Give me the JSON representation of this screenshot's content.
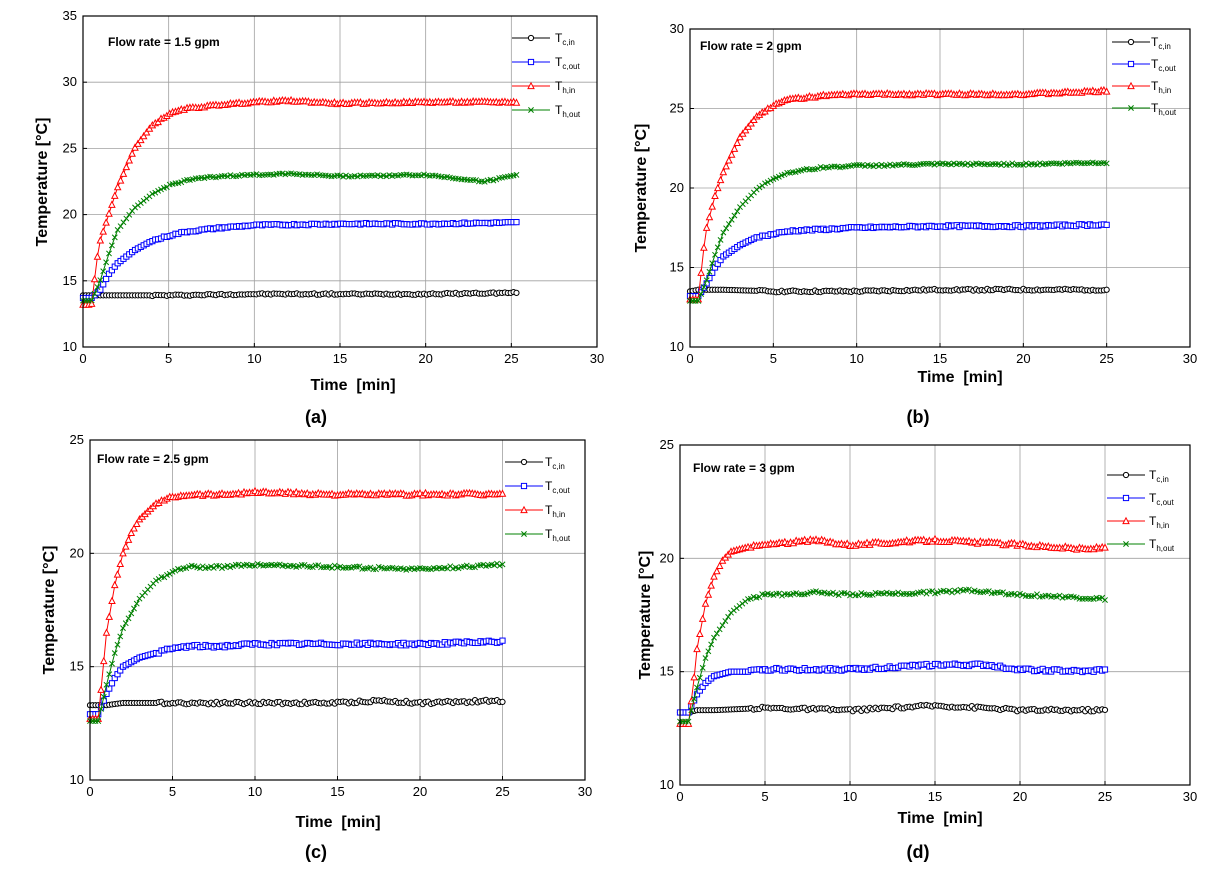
{
  "chart_data": [
    {
      "type": "line",
      "panel_label": "(a)",
      "annotation": "Flow rate = 1.5 gpm",
      "xlabel": "Time  [min]",
      "ylabel": "Temperature [°C]",
      "xlim": [
        0,
        30
      ],
      "ylim": [
        10,
        35
      ],
      "xticks": [
        0,
        5,
        10,
        15,
        20,
        25,
        30
      ],
      "yticks": [
        10,
        15,
        20,
        25,
        30,
        35
      ],
      "grid": true,
      "legend_position": "top-right",
      "x_end": 25.3,
      "series": [
        {
          "name": "T",
          "sub": "c,in",
          "color": "#000000",
          "marker": "circle",
          "x": [
            0,
            0.5,
            1,
            2,
            5,
            10,
            15,
            20,
            25.3
          ],
          "y": [
            13.9,
            13.9,
            13.9,
            13.9,
            13.9,
            14.0,
            14.0,
            14.0,
            14.1
          ]
        },
        {
          "name": "T",
          "sub": "c,out",
          "color": "#0000ff",
          "marker": "square",
          "x": [
            0,
            0.5,
            1,
            1.5,
            2,
            3,
            4,
            5,
            6,
            8,
            10,
            15,
            20,
            25.3
          ],
          "y": [
            13.7,
            13.7,
            14.3,
            15.5,
            16.3,
            17.3,
            18.0,
            18.4,
            18.7,
            19.0,
            19.2,
            19.3,
            19.3,
            19.4
          ]
        },
        {
          "name": "T",
          "sub": "h,in",
          "color": "#ff0000",
          "marker": "triangle",
          "x": [
            0,
            0.5,
            0.8,
            1,
            1.5,
            2,
            3,
            4,
            5,
            6,
            8,
            10,
            12,
            15,
            20,
            25.3
          ],
          "y": [
            13.2,
            13.2,
            16.5,
            18.0,
            20.0,
            22.0,
            25.0,
            26.7,
            27.6,
            28.0,
            28.3,
            28.5,
            28.6,
            28.4,
            28.5,
            28.5
          ]
        },
        {
          "name": "T",
          "sub": "h,out",
          "color": "#008000",
          "marker": "x",
          "x": [
            0,
            0.5,
            1,
            1.5,
            2,
            3,
            4,
            5,
            6,
            8,
            10,
            12,
            15,
            20,
            23.5,
            25.3
          ],
          "y": [
            13.5,
            13.5,
            15.0,
            17.0,
            18.8,
            20.5,
            21.5,
            22.2,
            22.6,
            22.9,
            23.0,
            23.1,
            22.9,
            23.0,
            22.5,
            23.0
          ]
        }
      ]
    },
    {
      "type": "line",
      "panel_label": "(b)",
      "annotation": "Flow rate = 2 gpm",
      "xlabel": "Time  [min]",
      "ylabel": "Temperature [°C]",
      "xlim": [
        0,
        30
      ],
      "ylim": [
        10,
        30
      ],
      "xticks": [
        0,
        5,
        10,
        15,
        20,
        25,
        30
      ],
      "yticks": [
        10,
        15,
        20,
        25,
        30
      ],
      "grid": true,
      "legend_position": "top-right",
      "x_end": 25,
      "series": [
        {
          "name": "T",
          "sub": "c,in",
          "color": "#000000",
          "marker": "circle",
          "x": [
            0,
            0.5,
            1,
            2,
            5,
            10,
            15,
            20,
            25
          ],
          "y": [
            13.5,
            13.6,
            13.6,
            13.6,
            13.5,
            13.5,
            13.6,
            13.6,
            13.6
          ]
        },
        {
          "name": "T",
          "sub": "c,out",
          "color": "#0000ff",
          "marker": "square",
          "x": [
            0,
            0.5,
            1,
            1.5,
            2,
            3,
            4,
            5,
            6,
            8,
            10,
            15,
            20,
            25
          ],
          "y": [
            13.2,
            13.2,
            14.0,
            15.0,
            15.7,
            16.4,
            16.9,
            17.1,
            17.3,
            17.4,
            17.5,
            17.6,
            17.6,
            17.7
          ]
        },
        {
          "name": "T",
          "sub": "h,in",
          "color": "#ff0000",
          "marker": "triangle",
          "x": [
            0,
            0.5,
            0.8,
            1,
            1.5,
            2,
            3,
            4,
            5,
            6,
            8,
            10,
            15,
            20,
            25
          ],
          "y": [
            13.0,
            13.0,
            16.0,
            17.5,
            19.5,
            21.0,
            23.2,
            24.5,
            25.2,
            25.6,
            25.8,
            25.9,
            25.9,
            25.9,
            26.1
          ]
        },
        {
          "name": "T",
          "sub": "h,out",
          "color": "#008000",
          "marker": "x",
          "x": [
            0,
            0.5,
            1,
            1.5,
            2,
            3,
            4,
            5,
            6,
            8,
            10,
            15,
            20,
            25
          ],
          "y": [
            12.9,
            12.9,
            14.2,
            15.8,
            17.2,
            18.8,
            19.9,
            20.6,
            21.0,
            21.3,
            21.4,
            21.5,
            21.5,
            21.6
          ]
        }
      ]
    },
    {
      "type": "line",
      "panel_label": "(c)",
      "annotation": "Flow rate = 2.5 gpm",
      "xlabel": "Time  [min]",
      "ylabel": "Temperature [°C]",
      "xlim": [
        0,
        30
      ],
      "ylim": [
        10,
        25
      ],
      "xticks": [
        0,
        5,
        10,
        15,
        20,
        25,
        30
      ],
      "yticks": [
        10,
        15,
        20,
        25
      ],
      "grid": true,
      "legend_position": "top-right",
      "x_end": 25,
      "series": [
        {
          "name": "T",
          "sub": "c,in",
          "color": "#000000",
          "marker": "circle",
          "x": [
            0,
            0.5,
            1,
            2,
            5,
            10,
            15,
            17.5,
            20,
            25
          ],
          "y": [
            13.3,
            13.3,
            13.3,
            13.4,
            13.4,
            13.4,
            13.4,
            13.5,
            13.4,
            13.5
          ]
        },
        {
          "name": "T",
          "sub": "c,out",
          "color": "#0000ff",
          "marker": "square",
          "x": [
            0,
            0.5,
            1,
            1.5,
            2,
            3,
            4,
            5,
            6,
            8,
            10,
            15,
            20,
            25
          ],
          "y": [
            12.9,
            12.9,
            13.8,
            14.5,
            15.0,
            15.4,
            15.6,
            15.8,
            15.9,
            15.9,
            16.0,
            16.0,
            16.0,
            16.1
          ]
        },
        {
          "name": "T",
          "sub": "h,in",
          "color": "#ff0000",
          "marker": "triangle",
          "x": [
            0,
            0.5,
            0.8,
            1,
            1.5,
            2,
            2.5,
            3,
            4,
            5,
            6,
            8,
            10,
            15,
            20,
            25
          ],
          "y": [
            12.7,
            12.7,
            15.0,
            16.5,
            18.6,
            20.0,
            20.9,
            21.5,
            22.2,
            22.5,
            22.6,
            22.6,
            22.7,
            22.6,
            22.6,
            22.6
          ]
        },
        {
          "name": "T",
          "sub": "h,out",
          "color": "#008000",
          "marker": "x",
          "x": [
            0,
            0.5,
            1,
            1.5,
            2,
            3,
            4,
            5,
            6,
            8,
            10,
            15,
            20,
            25
          ],
          "y": [
            12.6,
            12.6,
            14.2,
            15.6,
            16.7,
            18.0,
            18.8,
            19.2,
            19.4,
            19.4,
            19.5,
            19.4,
            19.3,
            19.5
          ]
        }
      ]
    },
    {
      "type": "line",
      "panel_label": "(d)",
      "annotation": "Flow rate = 3 gpm",
      "xlabel": "Time  [min]",
      "ylabel": "Temperature [°C]",
      "xlim": [
        0,
        30
      ],
      "ylim": [
        10,
        25
      ],
      "xticks": [
        0,
        5,
        10,
        15,
        20,
        25,
        30
      ],
      "yticks": [
        10,
        15,
        20,
        25
      ],
      "grid": true,
      "legend_position": "top-right",
      "x_end": 25,
      "series": [
        {
          "name": "T",
          "sub": "c,in",
          "color": "#000000",
          "marker": "circle",
          "x": [
            0,
            0.5,
            1,
            2,
            5,
            10,
            15,
            18,
            20,
            25
          ],
          "y": [
            13.2,
            13.2,
            13.3,
            13.3,
            13.4,
            13.3,
            13.5,
            13.4,
            13.3,
            13.3
          ]
        },
        {
          "name": "T",
          "sub": "c,out",
          "color": "#0000ff",
          "marker": "square",
          "x": [
            0,
            0.5,
            1,
            1.5,
            2,
            3,
            4,
            5,
            6,
            8,
            10,
            15,
            18,
            20,
            24,
            25
          ],
          "y": [
            13.2,
            13.2,
            14.0,
            14.5,
            14.8,
            15.0,
            15.0,
            15.1,
            15.1,
            15.1,
            15.1,
            15.3,
            15.3,
            15.1,
            15.0,
            15.1
          ]
        },
        {
          "name": "T",
          "sub": "h,in",
          "color": "#ff0000",
          "marker": "triangle",
          "x": [
            0,
            0.5,
            0.8,
            1,
            1.5,
            2,
            2.5,
            3,
            4,
            5,
            8,
            10,
            15,
            20,
            24,
            25
          ],
          "y": [
            12.7,
            12.7,
            14.5,
            16.0,
            18.0,
            19.2,
            19.9,
            20.3,
            20.5,
            20.6,
            20.8,
            20.6,
            20.8,
            20.6,
            20.4,
            20.5
          ]
        },
        {
          "name": "T",
          "sub": "h,out",
          "color": "#008000",
          "marker": "x",
          "x": [
            0,
            0.5,
            1,
            1.5,
            2,
            3,
            4,
            5,
            6,
            8,
            10,
            15,
            17,
            20,
            25
          ],
          "y": [
            12.8,
            12.8,
            14.3,
            15.6,
            16.5,
            17.6,
            18.2,
            18.4,
            18.4,
            18.5,
            18.4,
            18.5,
            18.6,
            18.4,
            18.2
          ]
        }
      ]
    }
  ]
}
